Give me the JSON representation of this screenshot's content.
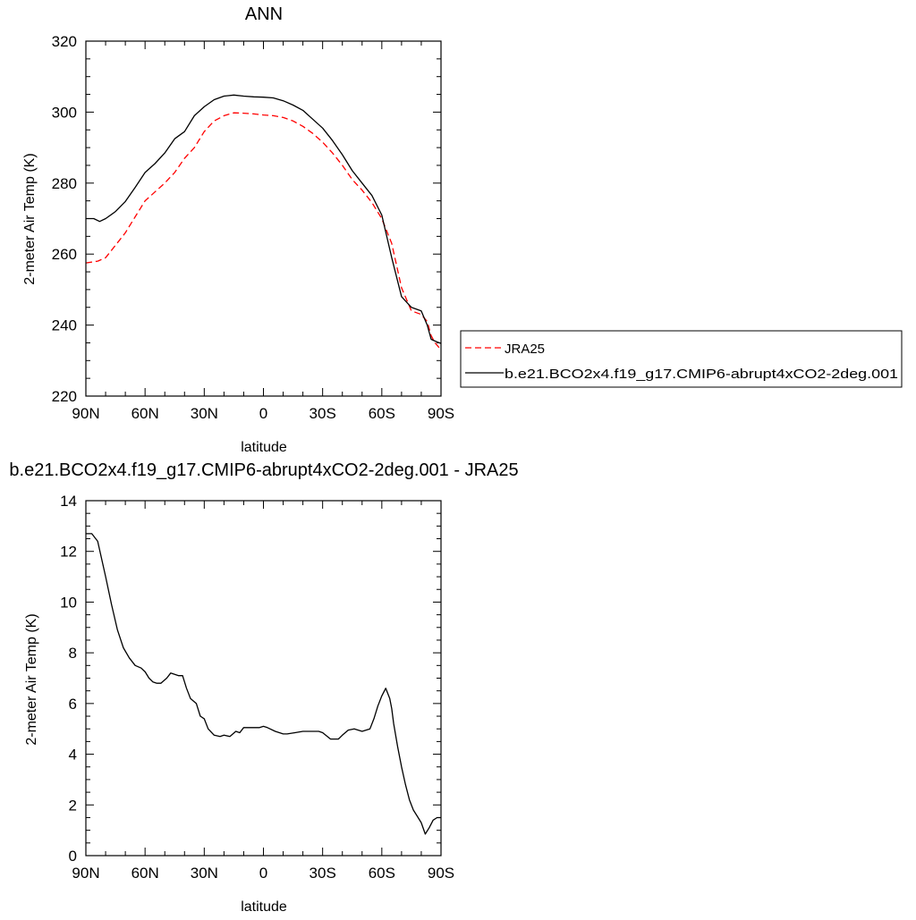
{
  "chart_data": [
    {
      "type": "line",
      "title": "ANN",
      "xlabel": "latitude",
      "ylabel": "2-meter Air Temp (K)",
      "xlim": [
        -90,
        90
      ],
      "ylim": [
        220,
        320
      ],
      "x_ticks": [
        -90,
        -60,
        -30,
        0,
        30,
        60,
        90
      ],
      "x_tick_labels": [
        "90N",
        "60N",
        "30N",
        "0",
        "30S",
        "60S",
        "90S"
      ],
      "y_ticks": [
        220,
        240,
        260,
        280,
        300,
        320
      ],
      "y_tick_labels": [
        "220",
        "240",
        "260",
        "280",
        "300",
        "320"
      ],
      "legend_position": "right",
      "series": [
        {
          "name": "JRA25",
          "color": "#ff0000",
          "dash": "dashed",
          "x": [
            -90,
            -84,
            -80,
            -75,
            -70,
            -65,
            -60,
            -55,
            -50,
            -45,
            -40,
            -35,
            -30,
            -25,
            -20,
            -15,
            -10,
            -5,
            0,
            5,
            10,
            15,
            20,
            25,
            30,
            35,
            40,
            45,
            50,
            55,
            60,
            65,
            70,
            75,
            80,
            83,
            85,
            87,
            90
          ],
          "y": [
            257.5,
            258,
            259,
            262.5,
            266,
            270.5,
            275,
            277.5,
            280,
            283,
            287,
            290,
            294.5,
            297.5,
            299,
            299.8,
            299.7,
            299.5,
            299.2,
            299,
            298.5,
            297.5,
            296,
            294,
            291.5,
            288.5,
            285,
            281,
            278,
            274.5,
            270,
            263,
            250.5,
            244,
            243,
            241,
            237,
            235,
            233
          ]
        },
        {
          "name": "b.e21.BCO2x4.f19_g17.CMIP6-abrupt4xCO2-2deg.001",
          "color": "#000000",
          "dash": "solid",
          "x": [
            -90,
            -86,
            -83,
            -80,
            -75,
            -70,
            -65,
            -60,
            -55,
            -50,
            -45,
            -40,
            -35,
            -30,
            -25,
            -20,
            -15,
            -10,
            -5,
            0,
            5,
            10,
            15,
            20,
            25,
            30,
            35,
            40,
            45,
            50,
            55,
            60,
            65,
            70,
            75,
            80,
            83,
            85,
            87,
            90
          ],
          "y": [
            270,
            270,
            269.2,
            270,
            272,
            274.8,
            278.8,
            283,
            285.5,
            288.5,
            292.5,
            294.5,
            299,
            301.5,
            303.5,
            304.5,
            304.8,
            304.5,
            304.3,
            304.2,
            304,
            303.2,
            302,
            300.5,
            298,
            295.5,
            292,
            288,
            283.5,
            280,
            276.5,
            271,
            259,
            248,
            245,
            244,
            240,
            236,
            235.5,
            234.8
          ]
        }
      ]
    },
    {
      "type": "line",
      "title": "b.e21.BCO2x4.f19_g17.CMIP6-abrupt4xCO2-2deg.001 - JRA25",
      "xlabel": "latitude",
      "ylabel": "2-meter Air Temp (K)",
      "xlim": [
        -90,
        90
      ],
      "ylim": [
        0,
        14
      ],
      "x_ticks": [
        -90,
        -60,
        -30,
        0,
        30,
        60,
        90
      ],
      "x_tick_labels": [
        "90N",
        "60N",
        "30N",
        "0",
        "30S",
        "60S",
        "90S"
      ],
      "y_ticks": [
        0,
        2,
        4,
        6,
        8,
        10,
        12,
        14
      ],
      "y_tick_labels": [
        "0",
        "2",
        "4",
        "6",
        "8",
        "10",
        "12",
        "14"
      ],
      "series": [
        {
          "color": "#000000",
          "dash": "solid",
          "x": [
            -90,
            -87,
            -84,
            -80,
            -77,
            -74,
            -71,
            -68,
            -65,
            -62,
            -60,
            -58,
            -56,
            -54,
            -52,
            -49,
            -47,
            -45,
            -43,
            -41,
            -39,
            -37,
            -34,
            -32,
            -30,
            -28,
            -25,
            -22,
            -20,
            -17,
            -14,
            -12,
            -10,
            -6,
            -2,
            0,
            2,
            6,
            10,
            12,
            16,
            20,
            24,
            28,
            30,
            34,
            36,
            38,
            40,
            43,
            46,
            48,
            50,
            54,
            56,
            58,
            60,
            62,
            64,
            65,
            66,
            68,
            70,
            72,
            74,
            76,
            78,
            80,
            82,
            84,
            86,
            88,
            90
          ],
          "y": [
            12.7,
            12.7,
            12.4,
            11,
            9.9,
            8.9,
            8.2,
            7.8,
            7.5,
            7.4,
            7.25,
            7.0,
            6.85,
            6.8,
            6.8,
            7.0,
            7.2,
            7.15,
            7.1,
            7.1,
            6.6,
            6.2,
            6.0,
            5.5,
            5.4,
            5.0,
            4.75,
            4.7,
            4.75,
            4.7,
            4.9,
            4.85,
            5.05,
            5.05,
            5.05,
            5.1,
            5.05,
            4.9,
            4.8,
            4.8,
            4.85,
            4.9,
            4.9,
            4.9,
            4.85,
            4.6,
            4.6,
            4.6,
            4.75,
            4.95,
            5.0,
            4.95,
            4.9,
            5.0,
            5.4,
            5.9,
            6.3,
            6.6,
            6.2,
            5.8,
            5.2,
            4.3,
            3.5,
            2.8,
            2.2,
            1.8,
            1.55,
            1.3,
            0.85,
            1.1,
            1.4,
            1.5,
            1.5
          ]
        }
      ]
    }
  ]
}
